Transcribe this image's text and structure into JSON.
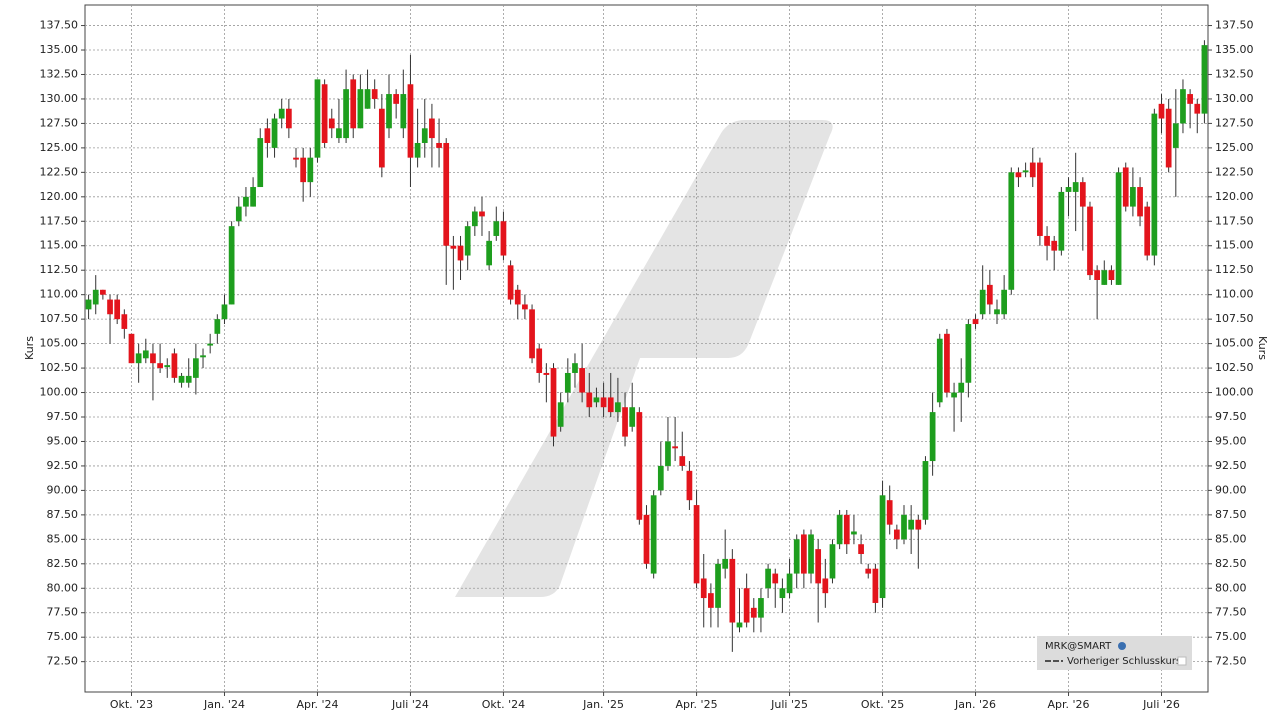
{
  "chart_data": {
    "type": "candlestick",
    "ylabel": "Kurs",
    "y2label": "Kurs",
    "legend": {
      "title": "MRK@SMART",
      "items": [
        "Vorheriger Schlusskurs"
      ]
    },
    "up_color": "#1e9e1e",
    "down_color": "#e3141c",
    "grid": true,
    "ylim": [
      69.4,
      139.6
    ],
    "yticks": [
      {
        "value": 72.5,
        "label": "72.50"
      },
      {
        "value": 75,
        "label": "75.00"
      },
      {
        "value": 77.5,
        "label": "77.50"
      },
      {
        "value": 80,
        "label": "80.00"
      },
      {
        "value": 82.5,
        "label": "82.50"
      },
      {
        "value": 85,
        "label": "85.00"
      },
      {
        "value": 87.5,
        "label": "87.50"
      },
      {
        "value": 90,
        "label": "90.00"
      },
      {
        "value": 92.5,
        "label": "92.50"
      },
      {
        "value": 95,
        "label": "95.00"
      },
      {
        "value": 97.5,
        "label": "97.50"
      },
      {
        "value": 100,
        "label": "100.00"
      },
      {
        "value": 102.5,
        "label": "102.50"
      },
      {
        "value": 105,
        "label": "105.00"
      },
      {
        "value": 107.5,
        "label": "107.50"
      },
      {
        "value": 110,
        "label": "110.00"
      },
      {
        "value": 112.5,
        "label": "112.50"
      },
      {
        "value": 115,
        "label": "115.00"
      },
      {
        "value": 117.5,
        "label": "117.50"
      },
      {
        "value": 120,
        "label": "120.00"
      },
      {
        "value": 122.5,
        "label": "122.50"
      },
      {
        "value": 125,
        "label": "125.00"
      },
      {
        "value": 127.5,
        "label": "127.50"
      },
      {
        "value": 130,
        "label": "130.00"
      },
      {
        "value": 132.5,
        "label": "132.50"
      },
      {
        "value": 135,
        "label": "135.00"
      },
      {
        "value": 137.5,
        "label": "137.50"
      }
    ],
    "categories": [
      null,
      null,
      null,
      null,
      null,
      null,
      "Okt. '23",
      null,
      null,
      null,
      null,
      null,
      null,
      null,
      null,
      null,
      null,
      null,
      null,
      "Jan. '24",
      null,
      null,
      null,
      null,
      null,
      null,
      null,
      null,
      null,
      null,
      null,
      null,
      "Apr. '24",
      null,
      null,
      null,
      null,
      null,
      null,
      null,
      null,
      null,
      null,
      null,
      null,
      "Juli '24",
      null,
      null,
      null,
      null,
      null,
      null,
      null,
      null,
      null,
      null,
      null,
      null,
      "Okt. '24",
      null,
      null,
      null,
      null,
      null,
      null,
      null,
      null,
      null,
      null,
      null,
      null,
      null,
      "Jan. '25",
      null,
      null,
      null,
      null,
      null,
      null,
      null,
      null,
      null,
      null,
      null,
      null,
      "Apr. '25",
      null,
      null,
      null,
      null,
      null,
      null,
      null,
      null,
      null,
      null,
      null,
      null,
      "Juli '25",
      null,
      null,
      null,
      null,
      null,
      null,
      null,
      null,
      null,
      null,
      null,
      null,
      "Okt. '25",
      null,
      null,
      null,
      null,
      null,
      null,
      null,
      null,
      null,
      null,
      null,
      null,
      "Jan. '26",
      null,
      null,
      null,
      null,
      null,
      null,
      null,
      null,
      null,
      null,
      null,
      null,
      "Apr. '26",
      null,
      null,
      null,
      null,
      null,
      null,
      null,
      null,
      null,
      null,
      null,
      null,
      "Juli '26",
      null,
      null,
      null,
      null,
      null,
      null
    ],
    "open": [
      108.5,
      109,
      110.5,
      109.5,
      109.5,
      108,
      106,
      103,
      103.5,
      104,
      103,
      102.6,
      104,
      101,
      101,
      101.5,
      103.6,
      104.8,
      106,
      107.5,
      109,
      117.5,
      119,
      119,
      121,
      127,
      125,
      128,
      129,
      124,
      124,
      121.5,
      124,
      131.5,
      128,
      126,
      126,
      132,
      127,
      129,
      131,
      129,
      127,
      130.5,
      127,
      131.5,
      124,
      125.5,
      128,
      125.5,
      125.5,
      115,
      115,
      114,
      117,
      118.5,
      113,
      116,
      117.5,
      113,
      110.5,
      109,
      108.5,
      104.5,
      102,
      102.5,
      96.5,
      100,
      102,
      102.5,
      100,
      99,
      99.5,
      99.5,
      98,
      98.5,
      96.5,
      98,
      87.5,
      81.5,
      90,
      92.5,
      94.5,
      93.5,
      92,
      88.5,
      81,
      79.5,
      78,
      82,
      83,
      76,
      80,
      78,
      77,
      80,
      81.5,
      79,
      79.5,
      81.5,
      85.5,
      81.5,
      84,
      81,
      81,
      84.5,
      87.5,
      85.5,
      84.5,
      82,
      82,
      79,
      89,
      86,
      85,
      86,
      87,
      87,
      93,
      99,
      106,
      99.5,
      100,
      101,
      107.5,
      108,
      111,
      108,
      108,
      110.5,
      122.5,
      122.5,
      123.5,
      123.5,
      116,
      115.5,
      114.5,
      120.5,
      120.5,
      121.5,
      119,
      112.5,
      111,
      112.5,
      111,
      123,
      119,
      121,
      119,
      114,
      129.5,
      129,
      125,
      127.5,
      130.5,
      129.5,
      128.5
    ],
    "high": [
      110,
      112,
      110.5,
      110,
      110,
      108.5,
      106,
      105,
      105.5,
      105,
      105,
      103.5,
      104.5,
      102,
      103.5,
      105,
      104.5,
      106,
      108,
      110,
      117.5,
      120,
      121,
      122,
      127,
      128,
      128.5,
      130,
      130,
      125,
      125,
      125,
      132,
      132,
      129,
      130,
      133,
      132.5,
      132.5,
      133,
      132,
      130.5,
      132.5,
      131,
      133,
      134.5,
      129,
      130,
      129.5,
      128,
      126,
      116,
      116,
      117.5,
      119,
      120,
      116.5,
      119,
      118.5,
      113.5,
      111,
      110,
      109,
      105,
      103,
      103,
      100,
      103.5,
      104,
      105,
      102,
      100.5,
      101,
      102,
      101.5,
      100,
      101,
      98.5,
      88.5,
      90,
      95,
      97.5,
      97.5,
      96,
      93,
      90,
      83.5,
      80.5,
      83,
      86,
      84,
      80,
      81.5,
      79,
      80,
      82.5,
      82,
      81,
      83,
      85.5,
      86,
      86,
      85,
      83,
      85,
      88,
      88,
      87.5,
      85.5,
      82.5,
      82.5,
      91,
      90.5,
      86.5,
      88.5,
      88.5,
      87.5,
      93.5,
      100,
      106,
      106.5,
      101,
      103.5,
      107.5,
      108,
      113,
      112.5,
      109.5,
      112,
      123,
      123,
      123.5,
      125,
      124,
      117,
      116,
      121,
      122,
      124.5,
      122,
      119.5,
      113,
      113.5,
      113,
      123,
      123.5,
      123,
      122,
      119.5,
      129,
      130.5,
      130,
      131,
      132,
      131,
      130,
      136
    ],
    "low": [
      107.5,
      108,
      109.5,
      105,
      107,
      105.5,
      103,
      101,
      103,
      99.2,
      102,
      101.5,
      101,
      100.5,
      100.5,
      99.8,
      102.5,
      104,
      105,
      107,
      109,
      117,
      118,
      119,
      121,
      124,
      124,
      127,
      126,
      123,
      119.5,
      120,
      123.5,
      125,
      126,
      125.5,
      125.5,
      126,
      127,
      129,
      129,
      122,
      126,
      128,
      126,
      121,
      123,
      124,
      123,
      123,
      111,
      110.5,
      111.5,
      112.5,
      116,
      116,
      112.5,
      115.5,
      113.5,
      109,
      107.5,
      107.5,
      103,
      101,
      99,
      94.5,
      96,
      99,
      100.5,
      99,
      97.5,
      98.5,
      97.5,
      97.5,
      97,
      94.5,
      96,
      86.5,
      82,
      81,
      89.5,
      92,
      93,
      92,
      88,
      80,
      76,
      76,
      76,
      81,
      73.5,
      75.5,
      76,
      75.5,
      75.5,
      79,
      78,
      77.5,
      79,
      80,
      80,
      80.5,
      76.5,
      78,
      80.5,
      84,
      83.5,
      84.5,
      82.5,
      81,
      77.5,
      78,
      85.5,
      84,
      84.5,
      83.5,
      82,
      86.5,
      91.5,
      98.5,
      99.5,
      96,
      97,
      99.5,
      106.5,
      107.5,
      108,
      107,
      107.5,
      110,
      121,
      122,
      121,
      115,
      113.5,
      112.5,
      114,
      118,
      116.5,
      114.5,
      111.5,
      107.5,
      111,
      111,
      111,
      118.5,
      118,
      117,
      113.5,
      113,
      126.5,
      122.5,
      120,
      126.5,
      127,
      126.5,
      127.5
    ],
    "close": [
      109.5,
      110.5,
      110,
      108,
      107.5,
      106.5,
      103,
      104,
      104.3,
      103,
      102.5,
      102.8,
      101.5,
      101.7,
      101.7,
      103.5,
      103.8,
      105,
      107.5,
      109,
      117,
      119,
      120,
      121,
      126,
      125.5,
      128,
      129,
      127,
      123.8,
      121.5,
      124,
      132,
      125.5,
      127,
      127,
      131,
      127,
      131,
      131,
      130,
      123,
      130.5,
      129.5,
      130.5,
      124,
      125.5,
      127,
      126,
      125,
      115,
      114.7,
      113.5,
      117,
      118.5,
      118,
      115.5,
      117.5,
      114,
      109.5,
      109,
      108.5,
      103.5,
      102,
      101.8,
      95.5,
      99,
      102,
      103,
      100,
      98.5,
      99.5,
      98.5,
      98,
      99,
      95.5,
      98.5,
      87,
      82.5,
      89.5,
      92.5,
      95,
      94.3,
      92.5,
      89,
      80.5,
      79,
      78,
      82.5,
      83,
      76.5,
      76.5,
      76.5,
      77,
      79,
      82,
      80.5,
      80,
      81.5,
      85,
      81.5,
      85.5,
      80.5,
      79.5,
      84.5,
      87.5,
      84.5,
      85.8,
      83.5,
      81.5,
      78.5,
      89.5,
      86.5,
      85,
      87.5,
      87,
      86,
      93,
      98,
      105.5,
      100,
      100,
      101,
      107,
      107,
      110.5,
      109,
      108.5,
      110.5,
      122.5,
      122,
      122.7,
      122,
      116,
      115,
      114.5,
      120.5,
      121,
      121.5,
      119,
      112,
      111.5,
      112.5,
      111.5,
      122.5,
      119,
      121,
      118,
      114,
      128.5,
      128,
      123,
      127.5,
      131,
      129.5,
      128.5,
      135.5
    ]
  }
}
